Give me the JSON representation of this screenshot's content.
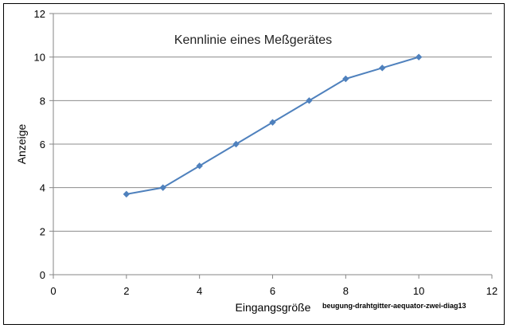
{
  "chart_data": {
    "type": "line",
    "title": "Kennlinie eines Meßgerätes",
    "xlabel": "Eingangsgröße",
    "ylabel": "Anzeige",
    "annotation": "beugung-drahtgitter-aequator-zwei-diag13",
    "xlim": [
      0,
      12
    ],
    "ylim": [
      0,
      12
    ],
    "xticks": [
      0,
      2,
      4,
      6,
      8,
      10,
      12
    ],
    "yticks": [
      0,
      2,
      4,
      6,
      8,
      10,
      12
    ],
    "grid": "horizontal",
    "series": [
      {
        "x": [
          2,
          3,
          4,
          5,
          6,
          7,
          8,
          9,
          10
        ],
        "y": [
          3.7,
          4,
          5,
          6,
          7,
          8,
          9,
          9.5,
          10
        ],
        "color": "#4f81bd"
      }
    ]
  }
}
